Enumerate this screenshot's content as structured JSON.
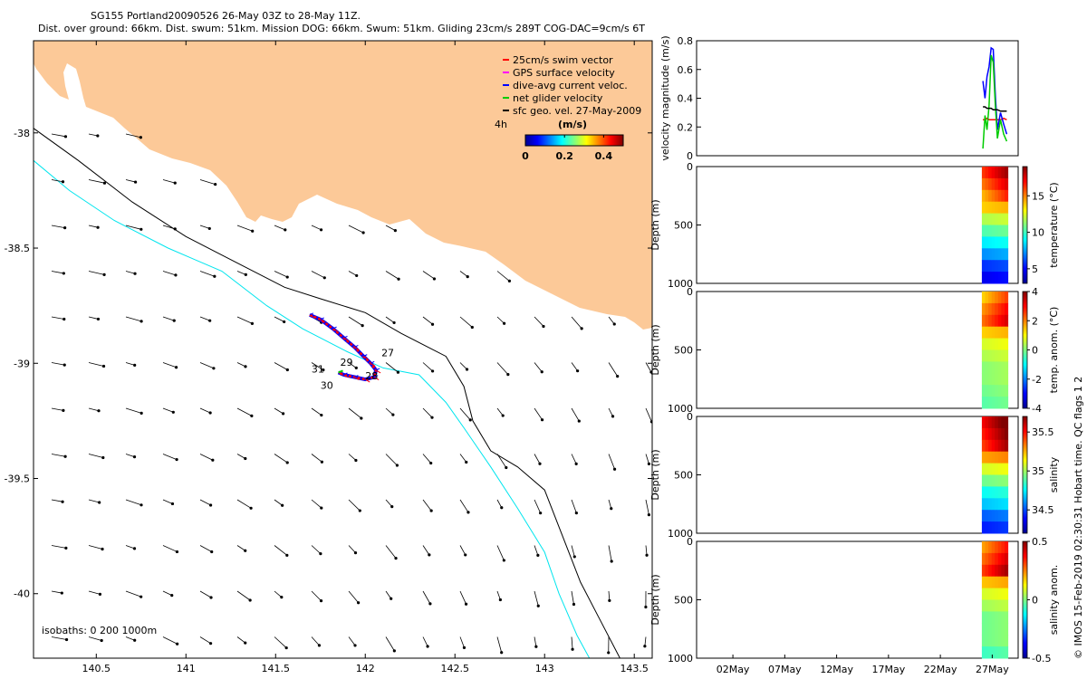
{
  "header": {
    "title_line1": "SG155 Portland20090526 26-May 03Z to 28-May 11Z.",
    "title_line2": "Dist. over ground: 66km. Dist. swum: 51km. Mission DOG: 66km. Swum: 51km. Gliding 23cm/s 289T COG-DAC=9cm/s 6T"
  },
  "credit": "© IMOS 15-Feb-2019 02:30:31 Hobart time. QC flags 1 2",
  "colors": {
    "land": "#fcc998",
    "swim": "#ff0000",
    "gps": "#ff00ff",
    "dac": "#0000ff",
    "net": "#00cc00",
    "geo": "#000000",
    "isobath200": "#00e5ee",
    "isobath1000": "#000000"
  },
  "chart_data": [
    {
      "id": "map",
      "type": "scatter",
      "x_ticks": [
        "140.5",
        "141",
        "141.5",
        "142",
        "142.5",
        "143",
        "143.5"
      ],
      "y_ticks": [
        "-38",
        "-38.5",
        "-39",
        "-39.5",
        "-40"
      ],
      "xlim": [
        140.15,
        143.6
      ],
      "ylim": [
        -40.28,
        -37.6
      ],
      "legend": {
        "position": "top-right",
        "items": [
          {
            "label": "25cm/s swim vector",
            "color": "#ff0000"
          },
          {
            "label": "GPS surface velocity",
            "color": "#ff00ff"
          },
          {
            "label": "dive-avg current veloc.",
            "color": "#0000ff"
          },
          {
            "label": "net glider velocity",
            "color": "#00cc00"
          },
          {
            "label": "sfc geo. vel. 27-May-2009",
            "color": "#000000"
          }
        ]
      },
      "colorbar": {
        "title": "(m/s)",
        "ticks": [
          "0",
          "0.2",
          "0.4"
        ],
        "range": [
          0,
          0.5
        ]
      },
      "labels": {
        "vector_scale": "4h",
        "isobaths": "isobaths: 0   200   1000m"
      },
      "annotations": [
        {
          "text": "27",
          "lon": 142.09,
          "lat": -38.97
        },
        {
          "text": "28",
          "lon": 142.0,
          "lat": -39.07
        },
        {
          "text": "29",
          "lon": 141.86,
          "lat": -39.01
        },
        {
          "text": "30",
          "lon": 141.75,
          "lat": -39.11
        },
        {
          "text": "31",
          "lon": 141.7,
          "lat": -39.04
        }
      ],
      "track": {
        "lon": [
          141.69,
          141.75,
          141.82,
          141.88,
          141.94,
          141.99,
          142.03,
          142.06,
          142.05,
          142.0,
          141.94,
          141.88,
          141.85
        ],
        "lat": [
          -38.79,
          -38.81,
          -38.85,
          -38.89,
          -38.93,
          -38.97,
          -39.0,
          -39.03,
          -39.06,
          -39.07,
          -39.06,
          -39.05,
          -39.04
        ]
      },
      "isobath_200": {
        "lon": [
          140.15,
          140.35,
          140.6,
          140.9,
          141.05,
          141.2,
          141.45,
          141.65,
          141.9,
          142.1,
          142.3,
          142.45,
          142.55,
          142.7,
          142.85,
          143.0,
          143.08,
          143.18,
          143.25
        ],
        "lat": [
          -38.12,
          -38.25,
          -38.38,
          -38.5,
          -38.55,
          -38.6,
          -38.75,
          -38.85,
          -38.95,
          -39.02,
          -39.05,
          -39.17,
          -39.28,
          -39.45,
          -39.63,
          -39.82,
          -40.0,
          -40.18,
          -40.28
        ]
      },
      "isobath_1000": {
        "lon": [
          140.15,
          140.4,
          140.7,
          141.0,
          141.25,
          141.55,
          141.75,
          142.0,
          142.2,
          142.45,
          142.55,
          142.6,
          142.7,
          142.85,
          143.0,
          143.1,
          143.2,
          143.3,
          143.42
        ],
        "lat": [
          -37.98,
          -38.12,
          -38.3,
          -38.45,
          -38.55,
          -38.67,
          -38.72,
          -38.78,
          -38.87,
          -38.97,
          -39.1,
          -39.25,
          -39.38,
          -39.45,
          -39.55,
          -39.75,
          -39.95,
          -40.1,
          -40.28
        ]
      }
    },
    {
      "id": "velocity",
      "type": "line",
      "ylabel": "velocity magnitude (m/s)",
      "y_ticks": [
        "0",
        "0.2",
        "0.4",
        "0.6",
        "0.8"
      ],
      "ylim": [
        0,
        0.8
      ],
      "x": [
        26.1,
        26.3,
        26.5,
        26.7,
        26.9,
        27.1,
        27.3,
        27.5,
        27.8,
        28.1,
        28.4
      ],
      "series": [
        {
          "color": "#ff0000",
          "values": [
            0.25,
            0.25,
            0.26,
            0.25,
            0.25,
            0.25,
            0.25,
            0.25,
            0.25,
            0.26,
            0.25
          ]
        },
        {
          "color": "#0000ff",
          "values": [
            0.52,
            0.4,
            0.55,
            0.62,
            0.75,
            0.74,
            0.42,
            0.18,
            0.3,
            0.22,
            0.15
          ]
        },
        {
          "color": "#00cc00",
          "values": [
            0.05,
            0.28,
            0.18,
            0.35,
            0.7,
            0.65,
            0.35,
            0.12,
            0.25,
            0.15,
            0.1
          ]
        },
        {
          "color": "#000000",
          "values": [
            0.34,
            0.34,
            0.33,
            0.33,
            0.33,
            0.32,
            0.32,
            0.32,
            0.31,
            0.31,
            0.31
          ]
        }
      ]
    },
    {
      "id": "temperature",
      "type": "heatmap",
      "ylabel": "Depth (m)",
      "y_ticks": [
        "0",
        "500",
        "1000"
      ],
      "colorbar_label": "temperature (°C)",
      "colorbar_ticks": [
        "5",
        "10",
        "15"
      ],
      "crange": [
        3,
        19
      ],
      "profile_depth": [
        0,
        100,
        200,
        300,
        400,
        500,
        600,
        700,
        800,
        900,
        1000
      ],
      "profile_values": [
        17.5,
        16.5,
        15.5,
        14.0,
        12.0,
        10.5,
        9.0,
        7.5,
        6.0,
        5.0,
        4.5
      ]
    },
    {
      "id": "temp_anom",
      "type": "heatmap",
      "ylabel": "Depth (m)",
      "y_ticks": [
        "0",
        "500",
        "1000"
      ],
      "colorbar_label": "temp. anom. (°C)",
      "colorbar_ticks": [
        "-4",
        "-2",
        "0",
        "2",
        "4"
      ],
      "crange": [
        -4,
        4
      ],
      "profile_depth": [
        0,
        100,
        200,
        300,
        400,
        500,
        600,
        700,
        800,
        900,
        1000
      ],
      "profile_values": [
        2.0,
        2.5,
        2.8,
        1.5,
        0.8,
        0.5,
        0.2,
        0.2,
        0.0,
        -0.2,
        -0.2
      ]
    },
    {
      "id": "salinity",
      "type": "heatmap",
      "ylabel": "Depth (m)",
      "y_ticks": [
        "0",
        "500",
        "1000"
      ],
      "colorbar_label": "salinity",
      "colorbar_ticks": [
        "34.5",
        "35",
        "35.5"
      ],
      "crange": [
        34.2,
        35.7
      ],
      "profile_depth": [
        0,
        100,
        200,
        300,
        400,
        500,
        600,
        700,
        800,
        900,
        1000
      ],
      "profile_values": [
        35.65,
        35.6,
        35.55,
        35.3,
        35.1,
        34.95,
        34.8,
        34.7,
        34.55,
        34.45,
        34.4
      ]
    },
    {
      "id": "sal_anom",
      "type": "heatmap",
      "ylabel": "Depth (m)",
      "y_ticks": [
        "0",
        "500",
        "1000"
      ],
      "colorbar_label": "salinity anom.",
      "colorbar_ticks": [
        "-0.5",
        "0",
        "0.5"
      ],
      "crange": [
        -0.5,
        0.5
      ],
      "profile_depth": [
        0,
        100,
        200,
        300,
        400,
        500,
        600,
        700,
        800,
        900,
        1000
      ],
      "profile_values": [
        0.3,
        0.35,
        0.4,
        0.2,
        0.1,
        0.05,
        0.0,
        0.0,
        0.0,
        -0.05,
        -0.05
      ]
    }
  ],
  "time_axis": {
    "ticks": [
      "02May",
      "07May",
      "12May",
      "17May",
      "22May",
      "27May"
    ],
    "days": [
      2,
      7,
      12,
      17,
      22,
      27
    ],
    "xlim": [
      -1.5,
      29.5
    ]
  }
}
